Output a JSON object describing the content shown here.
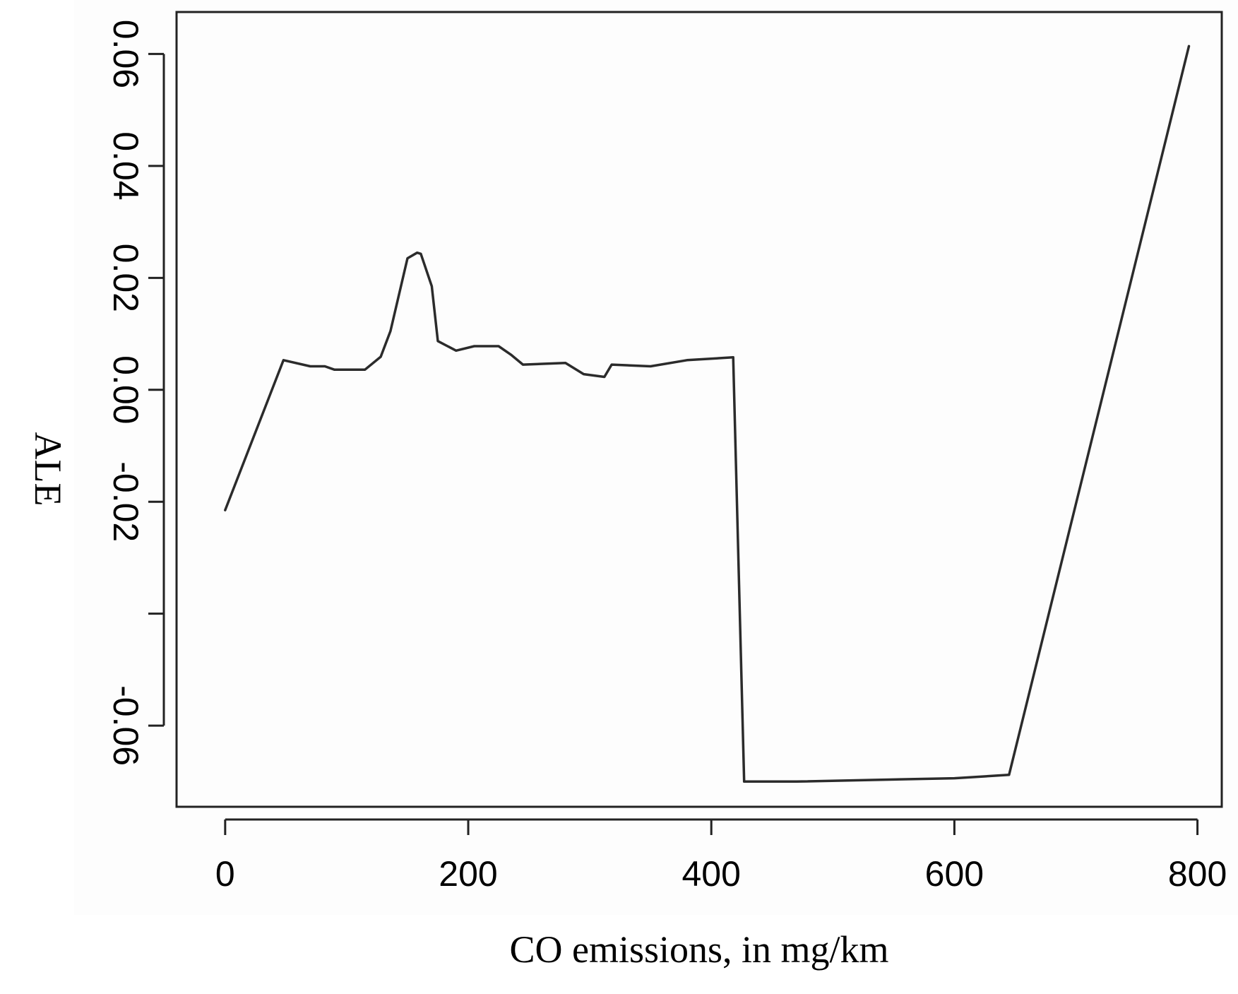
{
  "chart_data": {
    "type": "line",
    "title": "",
    "xlabel": "CO emissions, in mg/km",
    "ylabel": "ALE",
    "xlim": [
      -40,
      820
    ],
    "ylim": [
      -0.0745,
      0.0675
    ],
    "xticks": [
      0,
      200,
      400,
      600,
      800
    ],
    "xtick_labels": [
      "0",
      "200",
      "400",
      "600",
      "800"
    ],
    "yticks": [
      -0.06,
      -0.04,
      -0.02,
      0.0,
      0.02,
      0.04,
      0.06
    ],
    "ytick_labels": [
      "-0.06",
      "",
      "-0.02",
      "0.00",
      "0.02",
      "0.04",
      "0.06"
    ],
    "grid": false,
    "legend": "none",
    "line_color": "#2b2b2b",
    "series": [
      {
        "x": [
          0,
          48,
          70,
          82,
          90,
          115,
          128,
          136,
          150,
          158,
          161,
          170,
          175,
          190,
          205,
          225,
          235,
          245,
          280,
          295,
          312,
          318,
          350,
          380,
          418,
          427,
          470,
          600,
          645,
          793
        ],
        "y": [
          -0.0215,
          0.0053,
          0.0042,
          0.0042,
          0.0036,
          0.0036,
          0.0059,
          0.0105,
          0.0235,
          0.0245,
          0.0243,
          0.0185,
          0.0087,
          0.007,
          0.0078,
          0.0078,
          0.0063,
          0.0045,
          0.0048,
          0.0028,
          0.0023,
          0.0045,
          0.0042,
          0.0053,
          0.0058,
          -0.07,
          -0.07,
          -0.0694,
          -0.0688,
          0.0614
        ]
      }
    ]
  }
}
